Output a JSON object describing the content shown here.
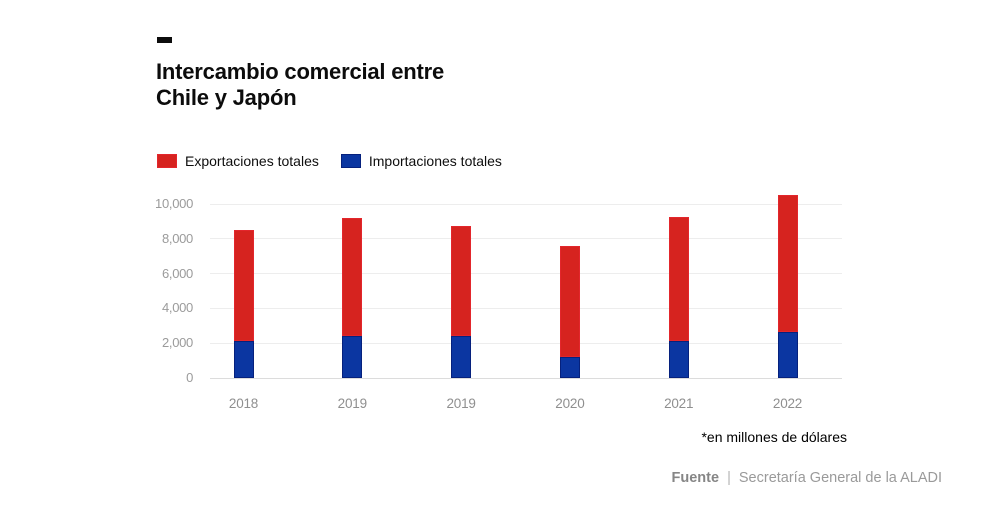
{
  "title": {
    "line1": "Intercambio comercial entre",
    "line2": "Chile y Japón"
  },
  "legend": [
    {
      "label": "Exportaciones totales",
      "color": "#d6231f",
      "border": "#e3262c"
    },
    {
      "label": "Importaciones totales",
      "color": "#0b36a1",
      "border": "#06217d"
    }
  ],
  "footnote": "*en millones de dólares",
  "source": {
    "label": "Fuente",
    "separator": "|",
    "text": "Secretaría General de la ALADI"
  },
  "colors": {
    "export_red": "#d6231f",
    "export_red_border": "#e3262c",
    "import_blue": "#0b36a1",
    "import_blue_border": "#06217d",
    "gridline": "#ededed",
    "axis_text": "#9b9b9b",
    "title_text": "#0c0c0c"
  },
  "chart_data": {
    "type": "bar",
    "stacked": true,
    "title": "Intercambio comercial entre Chile y Japón",
    "unit": "millones de dólares (USD)",
    "categories": [
      "2018",
      "2019",
      "2019",
      "2020",
      "2021",
      "2022"
    ],
    "series": [
      {
        "name": "Importaciones totales",
        "color": "#0b36a1",
        "values": [
          2100,
          2400,
          2400,
          1200,
          2100,
          2650
        ]
      },
      {
        "name": "Exportaciones totales",
        "color": "#d6231f",
        "values": [
          6400,
          6800,
          6350,
          6400,
          7150,
          7850
        ]
      }
    ],
    "totals": [
      8500,
      9200,
      8750,
      7600,
      9250,
      10500
    ],
    "xlabel": "",
    "ylabel": "",
    "ylim": [
      0,
      10000
    ],
    "y_ticks": [
      0,
      2000,
      4000,
      6000,
      8000,
      10000
    ],
    "y_tick_labels": [
      "0",
      "2,000",
      "4,000",
      "6,000",
      "8,000",
      "10,000"
    ],
    "grid": "horizontal",
    "legend_position": "top-left"
  }
}
